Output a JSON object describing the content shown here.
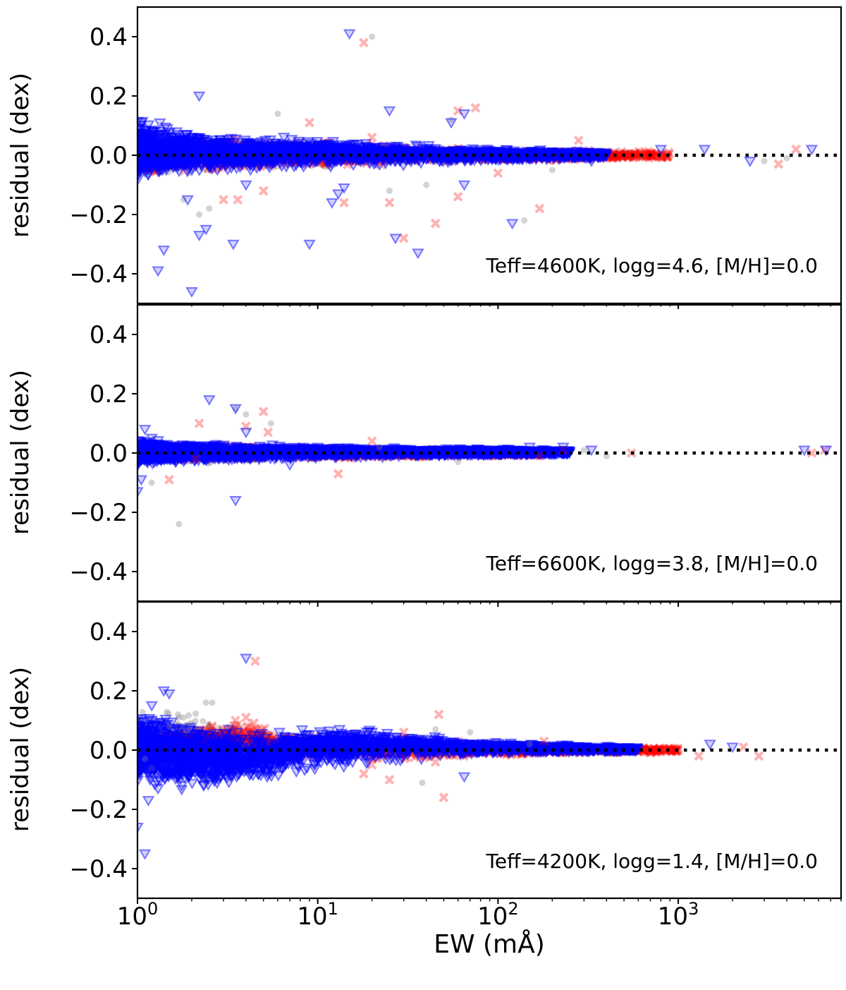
{
  "chart_data": {
    "type": "scatter",
    "xlabel": "EW (mÅ)",
    "xscale": "log",
    "xlim": [
      1,
      8000
    ],
    "x_tick_labels": [
      {
        "base": "10",
        "exp": "0"
      },
      {
        "base": "10",
        "exp": "1"
      },
      {
        "base": "10",
        "exp": "2"
      },
      {
        "base": "10",
        "exp": "3"
      }
    ],
    "ylabel": "residual (dex)",
    "ylim": [
      -0.5,
      0.5
    ],
    "y_tick_labels": [
      "0.4",
      "0.2",
      "0.0",
      "−0.2",
      "−0.4"
    ],
    "y_ticks": [
      0.4,
      0.2,
      0.0,
      -0.2,
      -0.4
    ],
    "reference_line": 0.0,
    "series_styles": [
      {
        "name": "gray",
        "marker": "circle",
        "color": "#808080"
      },
      {
        "name": "red",
        "marker": "x",
        "color": "#ff0000"
      },
      {
        "name": "blue",
        "marker": "triangle-down",
        "color": "#0000ff"
      }
    ],
    "panels": [
      {
        "annotation": "Teff=4600K, logg=4.6, [M/H]=0.0",
        "outliers": {
          "gray": [
            [
              2.2,
              -0.2
            ],
            [
              1.8,
              -0.15
            ],
            [
              2.5,
              -0.18
            ],
            [
              6,
              0.14
            ],
            [
              20,
              0.4
            ],
            [
              25,
              -0.12
            ],
            [
              40,
              -0.1
            ],
            [
              55,
              0.12
            ],
            [
              140,
              -0.22
            ],
            [
              200,
              -0.05
            ],
            [
              3000,
              -0.02
            ],
            [
              4000,
              -0.01
            ]
          ],
          "red": [
            [
              18,
              0.38
            ],
            [
              75,
              0.16
            ],
            [
              60,
              0.15
            ],
            [
              3,
              -0.15
            ],
            [
              3.6,
              -0.15
            ],
            [
              5,
              -0.12
            ],
            [
              9,
              0.11
            ],
            [
              14,
              -0.16
            ],
            [
              25,
              -0.16
            ],
            [
              30,
              -0.28
            ],
            [
              45,
              -0.23
            ],
            [
              60,
              -0.14
            ],
            [
              170,
              -0.18
            ],
            [
              20,
              0.06
            ],
            [
              100,
              -0.06
            ],
            [
              280,
              0.05
            ],
            [
              3600,
              -0.03
            ],
            [
              4500,
              0.02
            ]
          ],
          "blue": [
            [
              15,
              0.41
            ],
            [
              2.2,
              0.2
            ],
            [
              1.3,
              -0.39
            ],
            [
              1.4,
              -0.32
            ],
            [
              1.9,
              -0.15
            ],
            [
              2,
              -0.46
            ],
            [
              2.2,
              -0.27
            ],
            [
              2.4,
              -0.25
            ],
            [
              3.4,
              -0.3
            ],
            [
              4,
              -0.1
            ],
            [
              9,
              -0.3
            ],
            [
              12,
              -0.16
            ],
            [
              13,
              -0.13
            ],
            [
              14,
              -0.11
            ],
            [
              25,
              0.15
            ],
            [
              27,
              -0.28
            ],
            [
              36,
              -0.33
            ],
            [
              55,
              0.11
            ],
            [
              65,
              0.14
            ],
            [
              65,
              -0.1
            ],
            [
              120,
              -0.23
            ],
            [
              330,
              -0.02
            ],
            [
              800,
              0.02
            ],
            [
              1400,
              0.02
            ],
            [
              2500,
              -0.02
            ],
            [
              5500,
              0.02
            ]
          ]
        },
        "bands": {
          "gray": [
            [
              1,
              -0.07,
              0.06
            ],
            [
              5,
              -0.05,
              0.05
            ],
            [
              20,
              -0.03,
              0.03
            ],
            [
              100,
              -0.02,
              0.02
            ],
            [
              700,
              -0.01,
              0.01
            ]
          ],
          "red": [
            [
              1,
              -0.06,
              0.06
            ],
            [
              5,
              -0.05,
              0.05
            ],
            [
              20,
              -0.03,
              0.035
            ],
            [
              100,
              -0.02,
              0.02
            ],
            [
              900,
              -0.012,
              0.012
            ]
          ],
          "blue": [
            [
              1,
              -0.08,
              0.11
            ],
            [
              1.5,
              -0.07,
              0.09
            ],
            [
              3,
              -0.05,
              0.06
            ],
            [
              10,
              -0.035,
              0.05
            ],
            [
              30,
              -0.03,
              0.035
            ],
            [
              100,
              -0.02,
              0.02
            ],
            [
              400,
              -0.01,
              0.012
            ]
          ]
        }
      },
      {
        "annotation": "Teff=6600K, logg=3.8, [M/H]=0.0",
        "outliers": {
          "gray": [
            [
              1.7,
              -0.24
            ],
            [
              1.2,
              -0.1
            ],
            [
              3.5,
              0.15
            ],
            [
              4,
              0.13
            ],
            [
              5.5,
              0.1
            ],
            [
              22,
              0.02
            ],
            [
              60,
              -0.03
            ],
            [
              300,
              0.01
            ],
            [
              400,
              -0.01
            ]
          ],
          "red": [
            [
              2.2,
              0.1
            ],
            [
              5,
              0.14
            ],
            [
              5.3,
              0.07
            ],
            [
              4,
              0.09
            ],
            [
              1.5,
              -0.09
            ],
            [
              2.1,
              -0.02
            ],
            [
              13,
              -0.07
            ],
            [
              20,
              0.04
            ],
            [
              170,
              -0.01
            ],
            [
              230,
              0.01
            ],
            [
              550,
              0.0
            ],
            [
              5500,
              0.0
            ],
            [
              6500,
              0.01
            ]
          ],
          "blue": [
            [
              2.5,
              0.18
            ],
            [
              3.5,
              0.15
            ],
            [
              1.1,
              0.08
            ],
            [
              1.2,
              0.05
            ],
            [
              1.05,
              -0.09
            ],
            [
              1.0,
              -0.13
            ],
            [
              3.5,
              -0.16
            ],
            [
              4,
              0.07
            ],
            [
              7,
              -0.04
            ],
            [
              150,
              0.02
            ],
            [
              230,
              0.02
            ],
            [
              330,
              0.01
            ],
            [
              5000,
              0.01
            ],
            [
              6600,
              0.01
            ]
          ]
        },
        "bands": {
          "gray": [
            [
              1,
              -0.04,
              0.03
            ],
            [
              3,
              -0.03,
              0.02
            ],
            [
              20,
              -0.015,
              0.015
            ],
            [
              150,
              -0.01,
              0.01
            ]
          ],
          "red": [
            [
              1,
              -0.03,
              0.03
            ],
            [
              3,
              -0.02,
              0.025
            ],
            [
              20,
              -0.015,
              0.015
            ],
            [
              180,
              -0.01,
              0.01
            ]
          ],
          "blue": [
            [
              1,
              -0.04,
              0.04
            ],
            [
              2,
              -0.03,
              0.03
            ],
            [
              10,
              -0.015,
              0.02
            ],
            [
              60,
              -0.01,
              0.015
            ],
            [
              250,
              -0.005,
              0.01
            ]
          ]
        }
      },
      {
        "annotation": "Teff=4200K, logg=1.4, [M/H]=0.0",
        "outliers": {
          "gray": [
            [
              2.4,
              0.16
            ],
            [
              2.6,
              0.16
            ],
            [
              1.8,
              0.11
            ],
            [
              1.1,
              -0.03
            ],
            [
              1.2,
              -0.06
            ],
            [
              1.5,
              0.08
            ],
            [
              38,
              -0.11
            ],
            [
              70,
              0.06
            ],
            [
              45,
              0.07
            ],
            [
              150,
              0.02
            ]
          ],
          "red": [
            [
              4.5,
              0.3
            ],
            [
              3.5,
              0.1
            ],
            [
              4,
              0.11
            ],
            [
              3,
              0.07
            ],
            [
              47,
              0.12
            ],
            [
              50,
              -0.16
            ],
            [
              18,
              -0.08
            ],
            [
              20,
              -0.05
            ],
            [
              25,
              -0.1
            ],
            [
              30,
              0.06
            ],
            [
              45,
              -0.04
            ],
            [
              180,
              0.03
            ],
            [
              700,
              -0.01
            ],
            [
              1300,
              -0.02
            ],
            [
              2300,
              0.01
            ],
            [
              2800,
              -0.02
            ]
          ],
          "blue": [
            [
              4,
              0.31
            ],
            [
              1.1,
              -0.35
            ],
            [
              1.0,
              -0.26
            ],
            [
              1.15,
              -0.17
            ],
            [
              1.3,
              -0.13
            ],
            [
              1.4,
              0.2
            ],
            [
              1.5,
              0.19
            ],
            [
              1.2,
              0.15
            ],
            [
              1.2,
              -0.05
            ],
            [
              65,
              -0.09
            ],
            [
              1500,
              0.02
            ],
            [
              2000,
              0.01
            ]
          ]
        },
        "bands": {
          "gray": [
            [
              1,
              -0.05,
              0.12
            ],
            [
              2,
              -0.04,
              0.13
            ],
            [
              5,
              -0.02,
              0.06
            ],
            [
              20,
              -0.02,
              0.05
            ],
            [
              100,
              -0.01,
              0.02
            ],
            [
              500,
              -0.01,
              0.01
            ]
          ],
          "red": [
            [
              1,
              -0.04,
              0.05
            ],
            [
              3,
              -0.02,
              0.09
            ],
            [
              4,
              0.0,
              0.1
            ],
            [
              6,
              -0.03,
              0.05
            ],
            [
              30,
              -0.03,
              0.04
            ],
            [
              200,
              -0.012,
              0.012
            ],
            [
              1000,
              -0.008,
              0.008
            ]
          ],
          "blue": [
            [
              1,
              -0.1,
              0.1
            ],
            [
              1.5,
              -0.14,
              0.12
            ],
            [
              2,
              -0.14,
              0.08
            ],
            [
              4,
              -0.11,
              0.06
            ],
            [
              10,
              -0.06,
              0.07
            ],
            [
              20,
              -0.04,
              0.07
            ],
            [
              50,
              -0.02,
              0.04
            ],
            [
              150,
              -0.01,
              0.02
            ],
            [
              600,
              -0.005,
              0.01
            ]
          ]
        }
      }
    ]
  }
}
